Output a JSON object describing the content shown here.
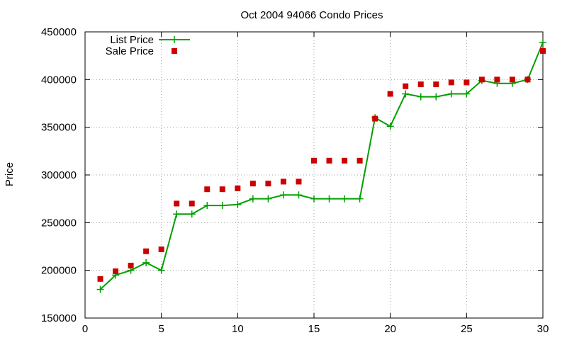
{
  "chart_data": {
    "type": "line",
    "title": "Oct 2004 94066 Condo Prices",
    "xlabel": "",
    "ylabel": "Price",
    "xlim": [
      0,
      30
    ],
    "ylim": [
      150000,
      450000
    ],
    "xticks": [
      0,
      5,
      10,
      15,
      20,
      25,
      30
    ],
    "yticks": [
      150000,
      200000,
      250000,
      300000,
      350000,
      400000,
      450000
    ],
    "grid": true,
    "legend_position": "top-left",
    "series": [
      {
        "name": "List Price",
        "style": "linespoints",
        "marker": "plus",
        "color": "#00a000",
        "x": [
          1,
          2,
          3,
          4,
          5,
          6,
          7,
          8,
          9,
          10,
          11,
          12,
          13,
          14,
          15,
          16,
          17,
          18,
          19,
          20,
          21,
          22,
          23,
          24,
          25,
          26,
          27,
          28,
          29,
          30
        ],
        "y": [
          180000,
          195000,
          200000,
          208000,
          200000,
          259000,
          259000,
          268000,
          268000,
          269000,
          275000,
          275000,
          279000,
          279000,
          275000,
          275000,
          275000,
          275000,
          360000,
          351000,
          385000,
          382000,
          382000,
          385000,
          385000,
          399000,
          396000,
          396000,
          400000,
          439000
        ]
      },
      {
        "name": "Sale Price",
        "style": "points",
        "marker": "square",
        "color": "#cc0000",
        "x": [
          1,
          2,
          3,
          4,
          5,
          6,
          7,
          8,
          9,
          10,
          11,
          12,
          13,
          14,
          15,
          16,
          17,
          18,
          19,
          20,
          21,
          22,
          23,
          24,
          25,
          26,
          27,
          28,
          29,
          30
        ],
        "y": [
          191000,
          199000,
          205000,
          220000,
          222000,
          270000,
          270000,
          285000,
          285000,
          286000,
          291000,
          291000,
          293000,
          293000,
          315000,
          315000,
          315000,
          315000,
          359000,
          385000,
          393000,
          395000,
          395000,
          397000,
          397000,
          400000,
          400000,
          400000,
          400000,
          430000
        ]
      }
    ]
  }
}
